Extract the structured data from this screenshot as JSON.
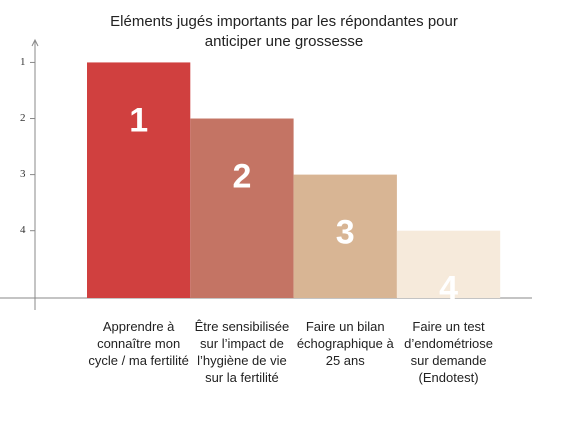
{
  "chart_data": {
    "type": "bar",
    "title": "Eléments jugés importants par les répondantes pour anticiper une grossesse",
    "categories": [
      "Apprendre à connaître mon cycle / ma fertilité",
      "Être sensibilisée sur l’impact de l’hygiène de vie sur la fertilité",
      "Faire un bilan échographique à 25 ans",
      "Faire un test d’endométriose sur demande (Endotest)"
    ],
    "values": [
      1,
      2,
      3,
      4
    ],
    "colors": [
      "#d0403f",
      "#c47464",
      "#d8b594",
      "#f6eadb"
    ],
    "ylim": [
      5.2,
      0.6
    ],
    "yticks": [
      1,
      2,
      3,
      4
    ]
  }
}
